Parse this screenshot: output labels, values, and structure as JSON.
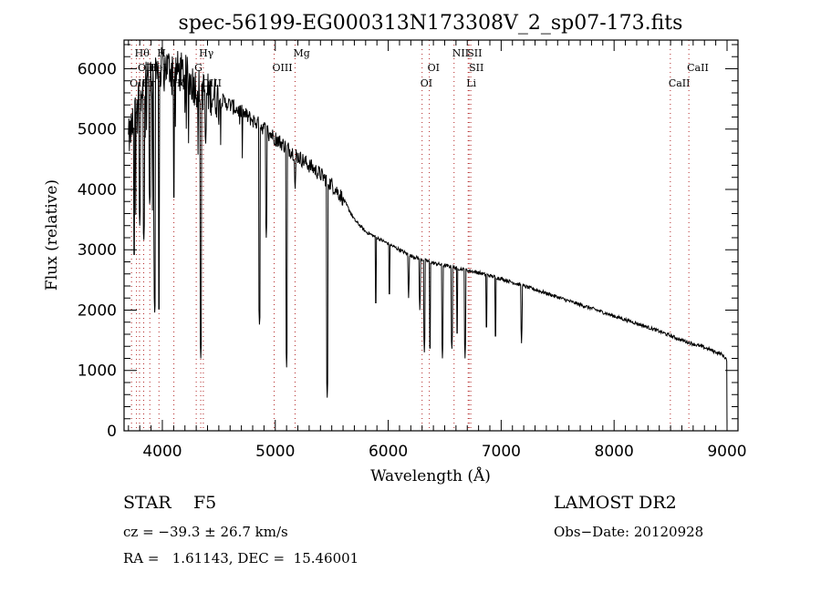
{
  "chart_data": {
    "type": "line",
    "title": "spec-56199-EG000313N173308V_2_sp07-173.fits",
    "xlabel": "Wavelength (Å)",
    "ylabel": "Flux (relative)",
    "xlim": [
      3661,
      9097
    ],
    "ylim": [
      0,
      6475
    ],
    "xticks": [
      4000,
      5000,
      6000,
      7000,
      8000,
      9000
    ],
    "xtick_labels": [
      "4000",
      "5000",
      "6000",
      "7000",
      "8000",
      "9000"
    ],
    "yticks": [
      0,
      1000,
      2000,
      3000,
      4000,
      5000,
      6000
    ],
    "ytick_labels": [
      "0",
      "1000",
      "2000",
      "3000",
      "4000",
      "5000",
      "6000"
    ],
    "grid": false,
    "series": [
      {
        "name": "spectrum",
        "color": "#000000",
        "continuum_x": [
          3700,
          3800,
          3900,
          4000,
          4100,
          4200,
          4300,
          4400,
          4500,
          4600,
          4700,
          4800,
          4900,
          5000,
          5100,
          5200,
          5300,
          5400,
          5500,
          5600,
          5700,
          5800,
          5900,
          6000,
          6200,
          6400,
          6600,
          6800,
          7000,
          7200,
          7400,
          7600,
          7800,
          8000,
          8200,
          8400,
          8600,
          8800,
          8950,
          8990
        ],
        "continuum_y": [
          4800,
          5600,
          5900,
          6050,
          6000,
          5900,
          5700,
          5600,
          5500,
          5400,
          5280,
          5150,
          5020,
          4850,
          4700,
          4550,
          4400,
          4250,
          4080,
          3850,
          3500,
          3300,
          3200,
          3100,
          2900,
          2780,
          2700,
          2620,
          2520,
          2400,
          2280,
          2150,
          2030,
          1900,
          1780,
          1650,
          1500,
          1380,
          1270,
          1200
        ],
        "absorption_lines": [
          {
            "wavelength": 3750,
            "depth_to": 2800
          },
          {
            "wavelength": 3800,
            "depth_to": 3400
          },
          {
            "wavelength": 3835,
            "depth_to": 3100
          },
          {
            "wavelength": 3889,
            "depth_to": 3700
          },
          {
            "wavelength": 3933,
            "depth_to": 1900
          },
          {
            "wavelength": 3970,
            "depth_to": 1900
          },
          {
            "wavelength": 4102,
            "depth_to": 3750
          },
          {
            "wavelength": 4340,
            "depth_to": 1200
          },
          {
            "wavelength": 4383,
            "depth_to": 4700
          },
          {
            "wavelength": 4861,
            "depth_to": 1700
          },
          {
            "wavelength": 4920,
            "depth_to": 3200
          },
          {
            "wavelength": 5100,
            "depth_to": 1050
          },
          {
            "wavelength": 5175,
            "depth_to": 3950
          },
          {
            "wavelength": 5460,
            "depth_to": 550
          },
          {
            "wavelength": 5890,
            "depth_to": 2000
          },
          {
            "wavelength": 6010,
            "depth_to": 2150
          },
          {
            "wavelength": 6180,
            "depth_to": 2200
          },
          {
            "wavelength": 6280,
            "depth_to": 2000
          },
          {
            "wavelength": 6320,
            "depth_to": 1300
          },
          {
            "wavelength": 6370,
            "depth_to": 1250
          },
          {
            "wavelength": 6480,
            "depth_to": 1200
          },
          {
            "wavelength": 6563,
            "depth_to": 1300
          },
          {
            "wavelength": 6610,
            "depth_to": 1500
          },
          {
            "wavelength": 6680,
            "depth_to": 1200
          },
          {
            "wavelength": 6870,
            "depth_to": 1600
          },
          {
            "wavelength": 6950,
            "depth_to": 1450
          },
          {
            "wavelength": 7180,
            "depth_to": 1450
          },
          {
            "wavelength": 9000,
            "depth_to": 0
          }
        ]
      }
    ],
    "line_markers": [
      {
        "wavelength": 3727,
        "label": "OII",
        "row": 3
      },
      {
        "wavelength": 3771,
        "label": "Hθ",
        "row": 1
      },
      {
        "wavelength": 3798,
        "label": "OIII",
        "row": 2
      },
      {
        "wavelength": 3835,
        "label": "Hη",
        "row": 3
      },
      {
        "wavelength": 3889,
        "label": "HeI",
        "row": 2
      },
      {
        "wavelength": 3970,
        "label": "H",
        "row": 1
      },
      {
        "wavelength": 4102,
        "label": "Hδ",
        "row": 3
      },
      {
        "wavelength": 4300,
        "label": "G",
        "row": 2
      },
      {
        "wavelength": 4340,
        "label": "Hγ",
        "row": 1
      },
      {
        "wavelength": 4363,
        "label": "OIII",
        "row": 3
      },
      {
        "wavelength": 4990,
        "label": "OIII",
        "row": 2
      },
      {
        "wavelength": 5175,
        "label": "Mg",
        "row": 1
      },
      {
        "wavelength": 6300,
        "label": "OI",
        "row": 3
      },
      {
        "wavelength": 6364,
        "label": "OI",
        "row": 2
      },
      {
        "wavelength": 6583,
        "label": "NII",
        "row": 1
      },
      {
        "wavelength": 6716,
        "label": "SII",
        "row": 1
      },
      {
        "wavelength": 6731,
        "label": "SII",
        "row": 2
      },
      {
        "wavelength": 6708,
        "label": "Li",
        "row": 3
      },
      {
        "wavelength": 8498,
        "label": "CaII",
        "row": 3
      },
      {
        "wavelength": 8662,
        "label": "CaII",
        "row": 2
      }
    ],
    "marker_color": "#b22222"
  },
  "info": {
    "class": "STAR",
    "subclass": "F5",
    "cz": "cz = −39.3 ± 26.7 km/s",
    "coords": "RA =   1.61143, DEC =  15.46001",
    "survey": "LAMOST DR2",
    "obs_date": "Obs−Date: 20120928"
  }
}
